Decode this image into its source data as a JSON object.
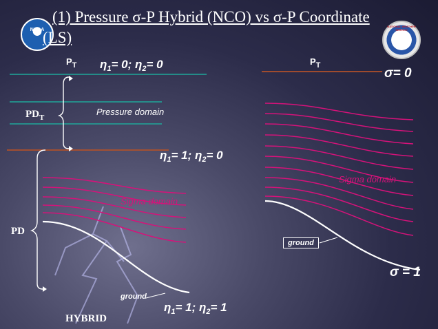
{
  "slide": {
    "title": "(1) Pressure σ-P Hybrid (NCO) vs σ-P Coordinate (LS)"
  },
  "logos": {
    "noaa": {
      "text": "NOAA",
      "icon": "noaa-logo-icon"
    },
    "nws": {
      "text": "NATIONAL WEATHER SERVICE",
      "icon": "nws-logo-icon"
    }
  },
  "hybrid": {
    "pt_label": "P",
    "pt_sub": "T",
    "top_eq": {
      "eta1": "η",
      "s1": "1",
      "v1": "= 0; ",
      "eta2": "η",
      "s2": "2",
      "v2": "= 0"
    },
    "mid_eq": {
      "eta1": "η",
      "s1": "1",
      "v1": "= 1; ",
      "eta2": "η",
      "s2": "2",
      "v2": "= 0"
    },
    "bottom_eq": {
      "eta1": "η",
      "s1": "1",
      "v1": "= 1; ",
      "eta2": "η",
      "s2": "2",
      "v2": "= 1"
    },
    "pdt_label": "PD",
    "pdt_sub": "T",
    "pressure_domain": "Pressure domain",
    "sigma_domain": "Sigma domain",
    "pd_label": "PD",
    "ground": "ground",
    "caption": "HYBRID"
  },
  "sigma": {
    "pt_label": "P",
    "pt_sub": "T",
    "top_label": "σ= 0",
    "sigma_domain": "Sigma domain",
    "ground": "ground",
    "bottom_label": "σ = 1"
  },
  "colors": {
    "teal": "#1fa89a",
    "magenta": "#d6127a",
    "brown": "#b0502a",
    "white": "#ffffff"
  }
}
